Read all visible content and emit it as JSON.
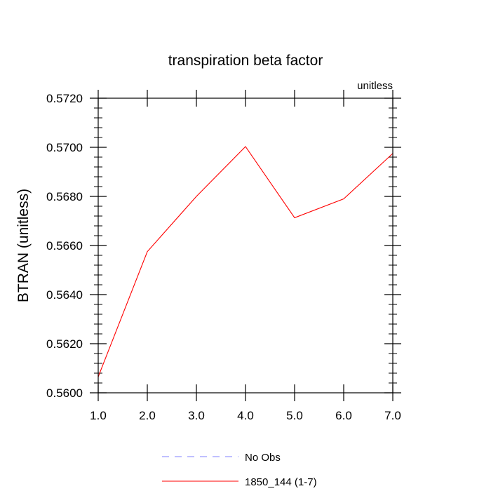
{
  "chart_data": {
    "type": "line",
    "title": "transpiration beta factor",
    "units_label": "unitless",
    "xlabel": "",
    "ylabel": "BTRAN  (unitless)",
    "xlim": [
      1.0,
      7.0
    ],
    "ylim": [
      0.56,
      0.572
    ],
    "xticks": [
      "1.0",
      "2.0",
      "3.0",
      "4.0",
      "5.0",
      "6.0",
      "7.0"
    ],
    "yticks": [
      "0.5600",
      "0.5620",
      "0.5640",
      "0.5660",
      "0.5680",
      "0.5700",
      "0.5720"
    ],
    "grid": false,
    "legend_position": "bottom-center",
    "series": [
      {
        "name": "1850_144 (1-7)",
        "color": "#ff0000",
        "dash": "solid",
        "x": [
          1,
          2,
          3,
          4,
          5,
          6,
          7
        ],
        "values": [
          0.56065,
          0.56575,
          0.568,
          0.57003,
          0.56713,
          0.5679,
          0.56975
        ]
      }
    ],
    "legend": [
      {
        "label": "No Obs",
        "color": "#8080ff",
        "dash": "dashed"
      },
      {
        "label": "1850_144 (1-7)",
        "color": "#ff0000",
        "dash": "solid"
      }
    ]
  }
}
